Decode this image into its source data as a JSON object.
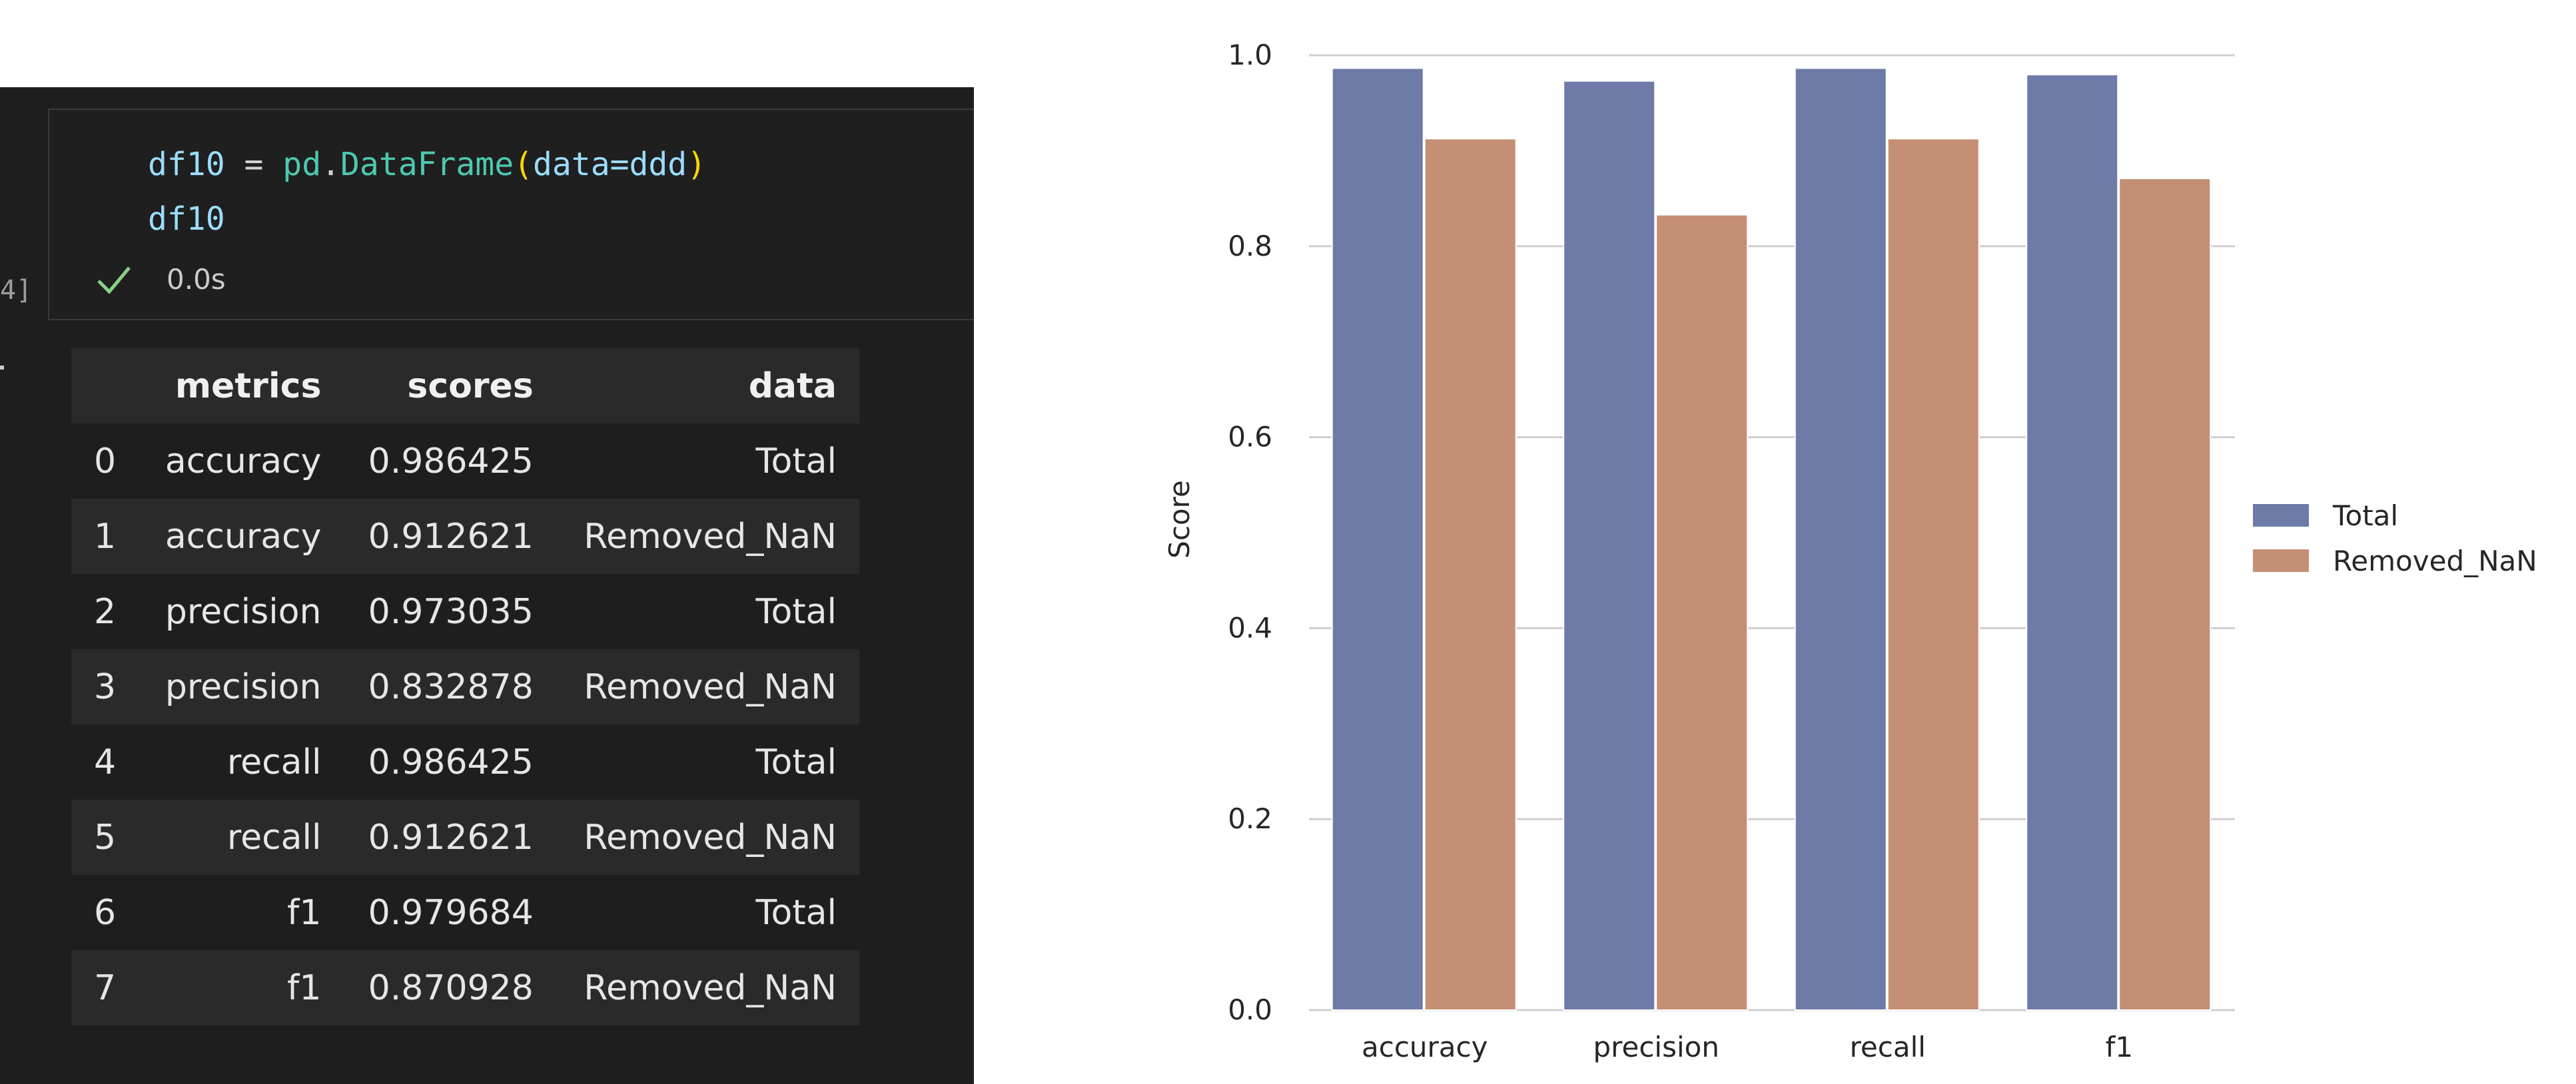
{
  "notebook": {
    "execution_count": "4]",
    "code": {
      "line1": {
        "var": "df10",
        "op": " = ",
        "module": "pd",
        "dot": ".",
        "cls": "DataFrame",
        "open": "(",
        "arg": "data=ddd",
        "close": ")"
      },
      "line2": "df10"
    },
    "status": {
      "icon": "check-icon",
      "time": "0.0s",
      "color": "#89d185"
    }
  },
  "table": {
    "columns": [
      "",
      "metrics",
      "scores",
      "data"
    ],
    "rows": [
      [
        "0",
        "accuracy",
        "0.986425",
        "Total"
      ],
      [
        "1",
        "accuracy",
        "0.912621",
        "Removed_NaN"
      ],
      [
        "2",
        "precision",
        "0.973035",
        "Total"
      ],
      [
        "3",
        "precision",
        "0.832878",
        "Removed_NaN"
      ],
      [
        "4",
        "recall",
        "0.986425",
        "Total"
      ],
      [
        "5",
        "recall",
        "0.912621",
        "Removed_NaN"
      ],
      [
        "6",
        "f1",
        "0.979684",
        "Total"
      ],
      [
        "7",
        "f1",
        "0.870928",
        "Removed_NaN"
      ]
    ]
  },
  "chart_data": {
    "type": "bar",
    "categories": [
      "accuracy",
      "precision",
      "recall",
      "f1"
    ],
    "series": [
      {
        "name": "Total",
        "values": [
          0.986425,
          0.973035,
          0.986425,
          0.979684
        ],
        "color": "#6e7ba8"
      },
      {
        "name": "Removed_NaN",
        "values": [
          0.912621,
          0.832878,
          0.912621,
          0.870928
        ],
        "color": "#c48f75"
      }
    ],
    "title": "",
    "xlabel": "",
    "ylabel": "Score",
    "ylim": [
      0,
      1.0
    ],
    "yticks": [
      "0.0",
      "0.2",
      "0.4",
      "0.6",
      "0.8",
      "1.0"
    ],
    "grid": "horizontal",
    "legend": "right"
  }
}
